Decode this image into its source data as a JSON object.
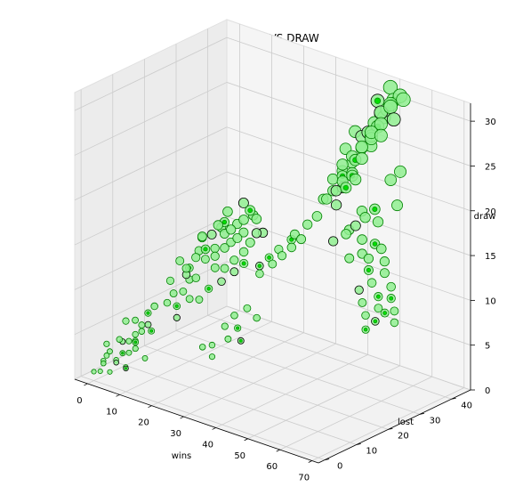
{
  "chart_data": {
    "type": "scatter",
    "projection": "3d",
    "title": "WIN VS LOST VS DRAW",
    "xlabel": "wins",
    "ylabel": "lost",
    "zlabel": "draw",
    "xlim": [
      -4,
      72
    ],
    "ylim": [
      -2,
      46
    ],
    "zlim": [
      0,
      32
    ],
    "xticks": [
      0,
      10,
      20,
      30,
      40,
      50,
      60,
      70
    ],
    "yticks": [
      0,
      10,
      20,
      30,
      40
    ],
    "zticks": [
      0,
      5,
      10,
      15,
      20,
      25,
      30
    ],
    "grid": true,
    "legend": "none",
    "marker_face_color": "#90ee90",
    "marker_edge_color": "#008000",
    "highlight_edge_color": "#000000",
    "points": [
      [
        0,
        0,
        1
      ],
      [
        1,
        1,
        1
      ],
      [
        2,
        1,
        2
      ],
      [
        1,
        2,
        2
      ],
      [
        3,
        2,
        1
      ],
      [
        2,
        3,
        3
      ],
      [
        4,
        3,
        2
      ],
      [
        3,
        4,
        2
      ],
      [
        5,
        4,
        3
      ],
      [
        4,
        5,
        4
      ],
      [
        6,
        5,
        3
      ],
      [
        5,
        6,
        4
      ],
      [
        7,
        6,
        5
      ],
      [
        6,
        7,
        4
      ],
      [
        8,
        7,
        6
      ],
      [
        7,
        8,
        5
      ],
      [
        9,
        8,
        6
      ],
      [
        8,
        9,
        7
      ],
      [
        10,
        9,
        8
      ],
      [
        3,
        1,
        3
      ],
      [
        2,
        2,
        4
      ],
      [
        6,
        2,
        5
      ],
      [
        4,
        6,
        1
      ],
      [
        9,
        4,
        4
      ],
      [
        11,
        5,
        3
      ],
      [
        8,
        2,
        2
      ],
      [
        7,
        3,
        7
      ],
      [
        12,
        6,
        6
      ],
      [
        10,
        3,
        5
      ],
      [
        5,
        8,
        6
      ],
      [
        10,
        14,
        10
      ],
      [
        12,
        13,
        9
      ],
      [
        14,
        15,
        11
      ],
      [
        11,
        16,
        12
      ],
      [
        13,
        17,
        10
      ],
      [
        15,
        14,
        12
      ],
      [
        16,
        16,
        13
      ],
      [
        12,
        18,
        11
      ],
      [
        14,
        19,
        13
      ],
      [
        17,
        15,
        11
      ],
      [
        18,
        17,
        14
      ],
      [
        15,
        20,
        12
      ],
      [
        16,
        18,
        15
      ],
      [
        19,
        19,
        13
      ],
      [
        13,
        21,
        14
      ],
      [
        17,
        20,
        15
      ],
      [
        20,
        18,
        12
      ],
      [
        18,
        21,
        16
      ],
      [
        21,
        20,
        14
      ],
      [
        16,
        22,
        13
      ],
      [
        19,
        22,
        15
      ],
      [
        22,
        21,
        16
      ],
      [
        20,
        23,
        14
      ],
      [
        18,
        24,
        17
      ],
      [
        23,
        22,
        15
      ],
      [
        21,
        24,
        16
      ],
      [
        24,
        23,
        17
      ],
      [
        22,
        25,
        15
      ],
      [
        25,
        24,
        18
      ],
      [
        14,
        12,
        8
      ],
      [
        20,
        16,
        10
      ],
      [
        22,
        19,
        12
      ],
      [
        24,
        20,
        13
      ],
      [
        23,
        17,
        11
      ],
      [
        26,
        21,
        14
      ],
      [
        25,
        19,
        12
      ],
      [
        27,
        22,
        15
      ],
      [
        17,
        13,
        9
      ],
      [
        15,
        11,
        7
      ],
      [
        19,
        14,
        9
      ],
      [
        26,
        25,
        17
      ],
      [
        28,
        23,
        16
      ],
      [
        21,
        26,
        18
      ],
      [
        24,
        26,
        17
      ],
      [
        27,
        20,
        13
      ],
      [
        29,
        24,
        16
      ],
      [
        18,
        23,
        16
      ],
      [
        16,
        24,
        15
      ],
      [
        13,
        15,
        9
      ],
      [
        11,
        12,
        8
      ],
      [
        25,
        12,
        5
      ],
      [
        27,
        14,
        7
      ],
      [
        29,
        13,
        6
      ],
      [
        28,
        16,
        8
      ],
      [
        30,
        15,
        7
      ],
      [
        31,
        17,
        9
      ],
      [
        26,
        11,
        4
      ],
      [
        32,
        14,
        6
      ],
      [
        24,
        10,
        5
      ],
      [
        33,
        18,
        8
      ],
      [
        35,
        40,
        20
      ],
      [
        37,
        41,
        21
      ],
      [
        39,
        42,
        22
      ],
      [
        36,
        43,
        23
      ],
      [
        38,
        40,
        22
      ],
      [
        40,
        41,
        23
      ],
      [
        42,
        42,
        24
      ],
      [
        41,
        43,
        25
      ],
      [
        43,
        44,
        24
      ],
      [
        44,
        42,
        26
      ],
      [
        38,
        44,
        25
      ],
      [
        45,
        43,
        27
      ],
      [
        46,
        44,
        28
      ],
      [
        47,
        42,
        27
      ],
      [
        48,
        43,
        28
      ],
      [
        49,
        41,
        29
      ],
      [
        44,
        45,
        29
      ],
      [
        46,
        41,
        26
      ],
      [
        50,
        44,
        30
      ],
      [
        48,
        45,
        31
      ],
      [
        39,
        39,
        21
      ],
      [
        42,
        40,
        23
      ],
      [
        45,
        39,
        25
      ],
      [
        40,
        38,
        20
      ],
      [
        43,
        38,
        22
      ],
      [
        47,
        40,
        26
      ],
      [
        49,
        43,
        29
      ],
      [
        51,
        42,
        30
      ],
      [
        36,
        39,
        19
      ],
      [
        34,
        38,
        18
      ],
      [
        48,
        39,
        27
      ],
      [
        50,
        40,
        28
      ],
      [
        52,
        41,
        30
      ],
      [
        53,
        43,
        31
      ],
      [
        46,
        38,
        24
      ],
      [
        44,
        37,
        22
      ],
      [
        41,
        37,
        21
      ],
      [
        55,
        42,
        31
      ],
      [
        54,
        40,
        29
      ],
      [
        51,
        39,
        27
      ],
      [
        45,
        30,
        16
      ],
      [
        48,
        31,
        17
      ],
      [
        50,
        32,
        18
      ],
      [
        47,
        33,
        17
      ],
      [
        52,
        33,
        19
      ],
      [
        54,
        34,
        20
      ],
      [
        49,
        35,
        19
      ],
      [
        53,
        31,
        17
      ],
      [
        56,
        33,
        19
      ],
      [
        51,
        29,
        15
      ],
      [
        55,
        29,
        16
      ],
      [
        57,
        31,
        17
      ],
      [
        58,
        28,
        16
      ],
      [
        60,
        30,
        17
      ],
      [
        59,
        27,
        15
      ],
      [
        62,
        29,
        16
      ],
      [
        61,
        26,
        14
      ],
      [
        63,
        28,
        15
      ],
      [
        64,
        25,
        13
      ],
      [
        66,
        27,
        14
      ],
      [
        65,
        24,
        12
      ],
      [
        67,
        26,
        13
      ],
      [
        68,
        23,
        12
      ],
      [
        66,
        22,
        11
      ],
      [
        69,
        25,
        12
      ],
      [
        70,
        24,
        11
      ],
      [
        64,
        21,
        10
      ],
      [
        62,
        23,
        11
      ],
      [
        60,
        24,
        12
      ],
      [
        58,
        25,
        13
      ],
      [
        40,
        36,
        20
      ],
      [
        42,
        34,
        19
      ],
      [
        38,
        35,
        19
      ],
      [
        44,
        35,
        21
      ],
      [
        46,
        36,
        22
      ],
      [
        36,
        34,
        17
      ],
      [
        34,
        33,
        16
      ],
      [
        56,
        37,
        23
      ],
      [
        58,
        38,
        24
      ],
      [
        60,
        35,
        21
      ],
      [
        30,
        32,
        14
      ],
      [
        28,
        30,
        13
      ],
      [
        32,
        31,
        15
      ],
      [
        26,
        29,
        12
      ],
      [
        24,
        28,
        11
      ],
      [
        31,
        28,
        13
      ],
      [
        29,
        27,
        12
      ],
      [
        33,
        29,
        14
      ],
      [
        35,
        30,
        15
      ],
      [
        27,
        25,
        11
      ]
    ]
  }
}
